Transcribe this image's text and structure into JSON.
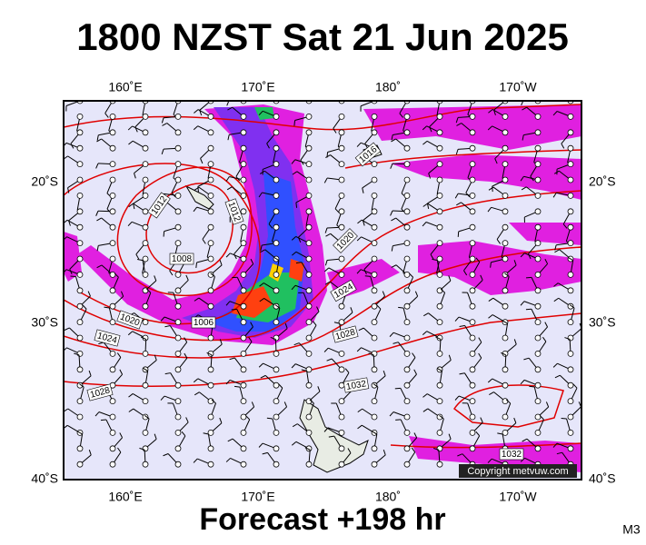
{
  "header": {
    "title": "1800 NZST Sat 21 Jun 2025"
  },
  "map": {
    "lon_labels": [
      "160˚E",
      "170˚E",
      "180˚",
      "170˚W"
    ],
    "lat_labels": [
      "20˚S",
      "30˚S",
      "40˚S"
    ],
    "isobar_labels": [
      "1012",
      "1012",
      "1008",
      "1016",
      "1020",
      "1020",
      "1024",
      "1024",
      "1006",
      "1028",
      "1028",
      "1032",
      "1032"
    ],
    "copyright": "Copyright metvuw.com"
  },
  "footer": {
    "forecast": "Forecast +198 hr",
    "model": "M3"
  }
}
